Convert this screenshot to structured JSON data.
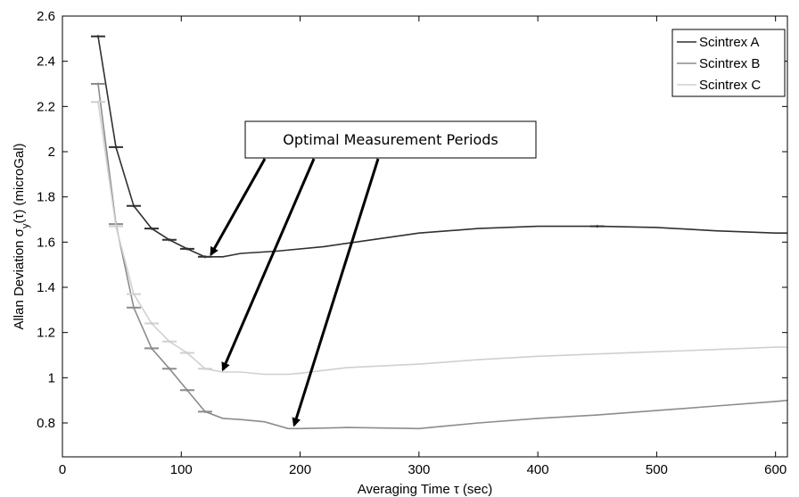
{
  "chart_data": {
    "type": "line",
    "title": "",
    "xlabel": "Averaging Time τ (sec)",
    "ylabel": "Allan Deviation σ_y(τ) (microGal)",
    "ylabel_main": "Allan Deviation ",
    "ylabel_sigma": "σ",
    "ylabel_sub": "y",
    "ylabel_rest": "(τ) (microGal)",
    "xlim": [
      0,
      610
    ],
    "ylim": [
      0.65,
      2.6
    ],
    "xticks": [
      0,
      100,
      200,
      300,
      400,
      500,
      600
    ],
    "yticks": [
      0.8,
      1,
      1.2,
      1.4,
      1.6,
      1.8,
      2,
      2.2,
      2.4,
      2.6
    ],
    "legend_position": "top-right",
    "series": [
      {
        "name": "Scintrex A",
        "color": "#303030",
        "x": [
          30,
          45,
          60,
          75,
          90,
          105,
          120,
          135,
          150,
          180,
          220,
          260,
          300,
          350,
          400,
          450,
          500,
          550,
          600,
          610
        ],
        "values": [
          2.51,
          2.02,
          1.76,
          1.66,
          1.61,
          1.57,
          1.535,
          1.535,
          1.55,
          1.56,
          1.58,
          1.61,
          1.64,
          1.66,
          1.67,
          1.67,
          1.665,
          1.65,
          1.64,
          1.64
        ],
        "errorbars_x": [
          30,
          45,
          60,
          75,
          90,
          105,
          120,
          450
        ],
        "errorbars_y": [
          2.51,
          2.02,
          1.76,
          1.66,
          1.61,
          1.57,
          1.535,
          1.67
        ]
      },
      {
        "name": "Scintrex B",
        "color": "#8c8c8c",
        "x": [
          30,
          45,
          60,
          75,
          90,
          105,
          120,
          135,
          150,
          170,
          190,
          200,
          240,
          300,
          350,
          400,
          450,
          500,
          550,
          600,
          610
        ],
        "values": [
          2.3,
          1.68,
          1.31,
          1.13,
          1.04,
          0.945,
          0.85,
          0.82,
          0.815,
          0.805,
          0.775,
          0.775,
          0.78,
          0.775,
          0.8,
          0.82,
          0.835,
          0.855,
          0.875,
          0.895,
          0.9
        ],
        "errorbars_x": [
          30,
          45,
          60,
          75,
          90,
          105,
          120
        ],
        "errorbars_y": [
          2.3,
          1.68,
          1.31,
          1.13,
          1.04,
          0.945,
          0.85
        ]
      },
      {
        "name": "Scintrex C",
        "color": "#d0d0d0",
        "x": [
          30,
          45,
          60,
          75,
          90,
          105,
          120,
          135,
          150,
          170,
          190,
          200,
          240,
          300,
          350,
          400,
          450,
          500,
          550,
          600,
          610
        ],
        "values": [
          2.22,
          1.67,
          1.37,
          1.24,
          1.16,
          1.11,
          1.04,
          1.025,
          1.025,
          1.015,
          1.015,
          1.02,
          1.045,
          1.06,
          1.08,
          1.095,
          1.105,
          1.115,
          1.125,
          1.135,
          1.135
        ],
        "errorbars_x": [
          30,
          45,
          60,
          75,
          90,
          105,
          120
        ],
        "errorbars_y": [
          2.22,
          1.67,
          1.37,
          1.24,
          1.16,
          1.11,
          1.04
        ]
      }
    ],
    "annotations": [
      {
        "text": "Optimal Measurement Periods",
        "arrow_targets": [
          {
            "x": 125,
            "y": 1.545
          },
          {
            "x": 135,
            "y": 1.035
          },
          {
            "x": 195,
            "y": 0.79
          }
        ]
      }
    ]
  }
}
